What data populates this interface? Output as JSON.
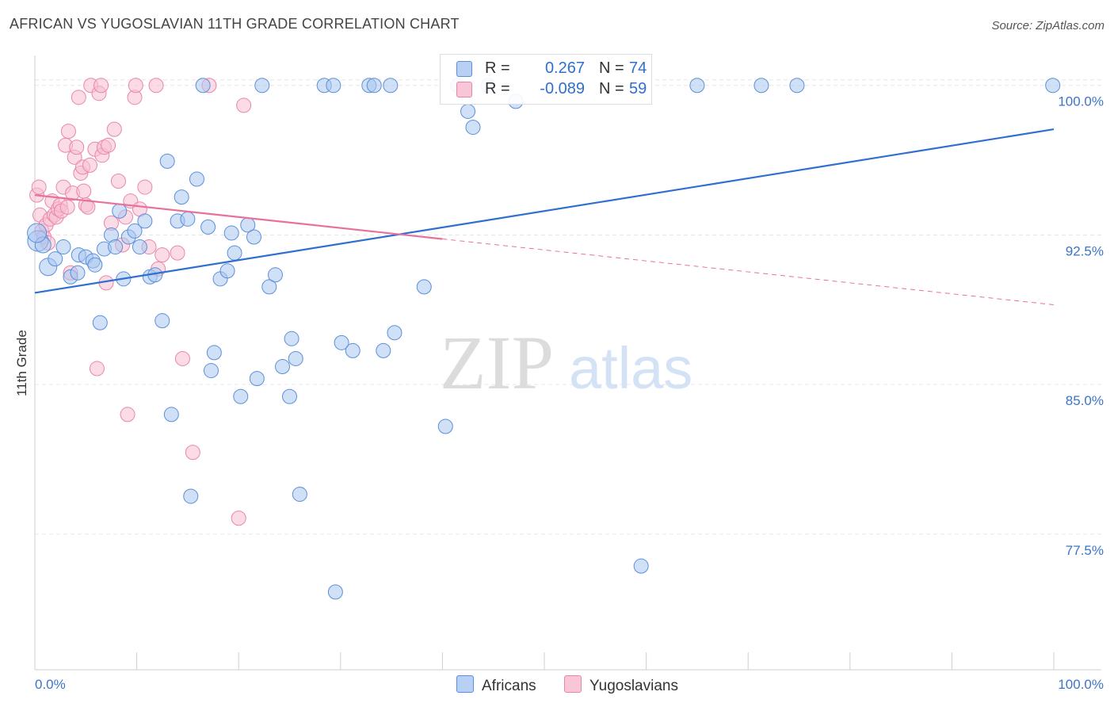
{
  "title": "AFRICAN VS YUGOSLAVIAN 11TH GRADE CORRELATION CHART",
  "source": "Source: ZipAtlas.com",
  "watermark": {
    "zip": "ZIP",
    "atlas": "atlas"
  },
  "colors": {
    "blue": "#5b8fd9",
    "blue_fill": "#a9c6f0",
    "blue_line": "#2f6fd0",
    "pink": "#e986a8",
    "pink_fill": "#f7bfd2",
    "pink_line": "#e8719b",
    "axis_text": "#3b74c9",
    "grid": "#e6e6e6"
  },
  "legend": {
    "rows": [
      {
        "r_label": "R =",
        "r_value": "0.267",
        "n_label": "N =",
        "n_value": "74"
      },
      {
        "r_label": "R =",
        "r_value": "-0.089",
        "n_label": "N =",
        "n_value": "59"
      }
    ]
  },
  "bottom_legend": {
    "africans": "Africans",
    "yugoslavians": "Yugoslavians"
  },
  "chart_data": {
    "type": "scatter",
    "title": "AFRICAN VS YUGOSLAVIAN 11TH GRADE CORRELATION CHART",
    "xlabel": "",
    "ylabel": "11th Grade",
    "xlim": [
      0,
      100
    ],
    "ylim": [
      70.7,
      101.5
    ],
    "x_tick_labels": [
      "0.0%",
      "100.0%"
    ],
    "y_ticks": [
      77.5,
      85.0,
      92.5,
      100.0
    ],
    "y_tick_labels": [
      "77.5%",
      "85.0%",
      "92.5%",
      "100.0%"
    ],
    "grid": true,
    "series": [
      {
        "name": "Africans",
        "R": 0.267,
        "N": 74,
        "trend": {
          "x0": 0,
          "y0": 89.6,
          "x1": 100,
          "y1": 97.8,
          "solid_until": 100
        },
        "points": [
          [
            0.3,
            92.2,
            13
          ],
          [
            0.8,
            92.0,
            10
          ],
          [
            1.3,
            90.9,
            11
          ],
          [
            2.0,
            91.3,
            9
          ],
          [
            2.8,
            91.9,
            9
          ],
          [
            3.5,
            90.4,
            9
          ],
          [
            4.2,
            90.6,
            9
          ],
          [
            4.3,
            91.5,
            9
          ],
          [
            5.0,
            91.4,
            9
          ],
          [
            5.7,
            91.2,
            9
          ],
          [
            5.9,
            91.0,
            9
          ],
          [
            6.4,
            88.1,
            9
          ],
          [
            6.8,
            91.8,
            9
          ],
          [
            7.5,
            92.5,
            9
          ],
          [
            7.9,
            91.9,
            9
          ],
          [
            8.3,
            93.7,
            9
          ],
          [
            8.7,
            90.3,
            9
          ],
          [
            9.2,
            92.4,
            9
          ],
          [
            9.8,
            92.7,
            9
          ],
          [
            10.3,
            91.9,
            9
          ],
          [
            10.8,
            93.2,
            9
          ],
          [
            11.3,
            90.4,
            9
          ],
          [
            11.8,
            90.5,
            9
          ],
          [
            12.5,
            88.2,
            9
          ],
          [
            13.0,
            96.2,
            9
          ],
          [
            13.4,
            83.5,
            9
          ],
          [
            14.0,
            93.2,
            9
          ],
          [
            14.4,
            94.4,
            9
          ],
          [
            15.0,
            93.3,
            9
          ],
          [
            15.3,
            79.4,
            9
          ],
          [
            15.9,
            95.3,
            9
          ],
          [
            16.5,
            100.0,
            9
          ],
          [
            17.0,
            92.9,
            9
          ],
          [
            17.3,
            85.7,
            9
          ],
          [
            17.6,
            86.6,
            9
          ],
          [
            18.2,
            90.3,
            9
          ],
          [
            18.9,
            90.7,
            9
          ],
          [
            19.3,
            92.6,
            9
          ],
          [
            19.6,
            91.6,
            9
          ],
          [
            20.2,
            84.4,
            9
          ],
          [
            20.9,
            93.0,
            9
          ],
          [
            21.5,
            92.4,
            9
          ],
          [
            21.8,
            85.3,
            9
          ],
          [
            22.3,
            100.0,
            9
          ],
          [
            23.0,
            89.9,
            9
          ],
          [
            23.6,
            90.5,
            9
          ],
          [
            24.3,
            85.9,
            9
          ],
          [
            25.0,
            84.4,
            9
          ],
          [
            25.2,
            87.3,
            9
          ],
          [
            25.6,
            86.3,
            9
          ],
          [
            26.0,
            79.5,
            9
          ],
          [
            28.4,
            100.0,
            9
          ],
          [
            29.3,
            100.0,
            9
          ],
          [
            29.5,
            74.6,
            9
          ],
          [
            30.1,
            87.1,
            9
          ],
          [
            31.2,
            86.7,
            9
          ],
          [
            32.8,
            100.0,
            9
          ],
          [
            33.3,
            100.0,
            9
          ],
          [
            34.2,
            86.7,
            9
          ],
          [
            34.9,
            100.0,
            9
          ],
          [
            35.3,
            87.6,
            9
          ],
          [
            38.2,
            89.9,
            9
          ],
          [
            40.3,
            82.9,
            9
          ],
          [
            41.5,
            100.0,
            9
          ],
          [
            42.5,
            98.7,
            9
          ],
          [
            43.0,
            97.9,
            9
          ],
          [
            44.5,
            100.0,
            9
          ],
          [
            47.2,
            99.2,
            9
          ],
          [
            59.5,
            75.9,
            9
          ],
          [
            65.0,
            100.0,
            9
          ],
          [
            71.3,
            100.0,
            9
          ],
          [
            74.8,
            100.0,
            9
          ],
          [
            99.9,
            100.0,
            9
          ],
          [
            0.2,
            92.6,
            12
          ]
        ]
      },
      {
        "name": "Yugoslavians",
        "R": -0.089,
        "N": 59,
        "trend": {
          "x0": 0,
          "y0": 94.5,
          "x1": 100,
          "y1": 89.0,
          "solid_until": 40
        },
        "points": [
          [
            0.2,
            94.5,
            9
          ],
          [
            0.4,
            94.9,
            9
          ],
          [
            0.5,
            93.5,
            9
          ],
          [
            0.7,
            92.7,
            9
          ],
          [
            0.9,
            92.4,
            9
          ],
          [
            1.1,
            93.0,
            9
          ],
          [
            1.3,
            92.1,
            9
          ],
          [
            1.5,
            93.3,
            9
          ],
          [
            1.7,
            94.2,
            9
          ],
          [
            1.9,
            93.5,
            9
          ],
          [
            2.1,
            93.4,
            9
          ],
          [
            2.3,
            93.8,
            9
          ],
          [
            2.5,
            94.0,
            9
          ],
          [
            2.6,
            93.7,
            9
          ],
          [
            2.8,
            94.9,
            9
          ],
          [
            3.0,
            97.0,
            9
          ],
          [
            3.2,
            93.9,
            9
          ],
          [
            3.3,
            97.7,
            9
          ],
          [
            3.5,
            90.6,
            9
          ],
          [
            3.7,
            94.6,
            9
          ],
          [
            3.9,
            96.4,
            9
          ],
          [
            4.1,
            96.9,
            9
          ],
          [
            4.3,
            99.4,
            9
          ],
          [
            4.5,
            95.6,
            9
          ],
          [
            4.7,
            95.9,
            9
          ],
          [
            4.8,
            94.7,
            9
          ],
          [
            5.0,
            94.0,
            9
          ],
          [
            5.2,
            93.9,
            9
          ],
          [
            5.4,
            96.0,
            9
          ],
          [
            5.5,
            100.0,
            9
          ],
          [
            5.9,
            96.8,
            9
          ],
          [
            6.1,
            85.8,
            9
          ],
          [
            6.3,
            99.6,
            9
          ],
          [
            6.5,
            100.0,
            9
          ],
          [
            6.6,
            96.5,
            9
          ],
          [
            6.8,
            96.9,
            9
          ],
          [
            7.0,
            90.1,
            9
          ],
          [
            7.2,
            97.0,
            9
          ],
          [
            7.5,
            93.1,
            9
          ],
          [
            7.8,
            97.8,
            9
          ],
          [
            8.2,
            95.2,
            9
          ],
          [
            8.6,
            92.0,
            9
          ],
          [
            8.9,
            93.4,
            9
          ],
          [
            9.1,
            83.5,
            9
          ],
          [
            9.4,
            94.2,
            9
          ],
          [
            9.8,
            99.4,
            9
          ],
          [
            9.9,
            100.0,
            9
          ],
          [
            10.3,
            93.8,
            9
          ],
          [
            10.8,
            94.9,
            9
          ],
          [
            11.2,
            91.9,
            9
          ],
          [
            11.9,
            100.0,
            9
          ],
          [
            12.1,
            90.8,
            9
          ],
          [
            12.5,
            91.5,
            9
          ],
          [
            14.0,
            91.6,
            9
          ],
          [
            14.5,
            86.3,
            9
          ],
          [
            15.5,
            81.6,
            9
          ],
          [
            17.1,
            100.0,
            9
          ],
          [
            20.0,
            78.3,
            9
          ],
          [
            20.5,
            99.0,
            9
          ]
        ]
      }
    ]
  }
}
